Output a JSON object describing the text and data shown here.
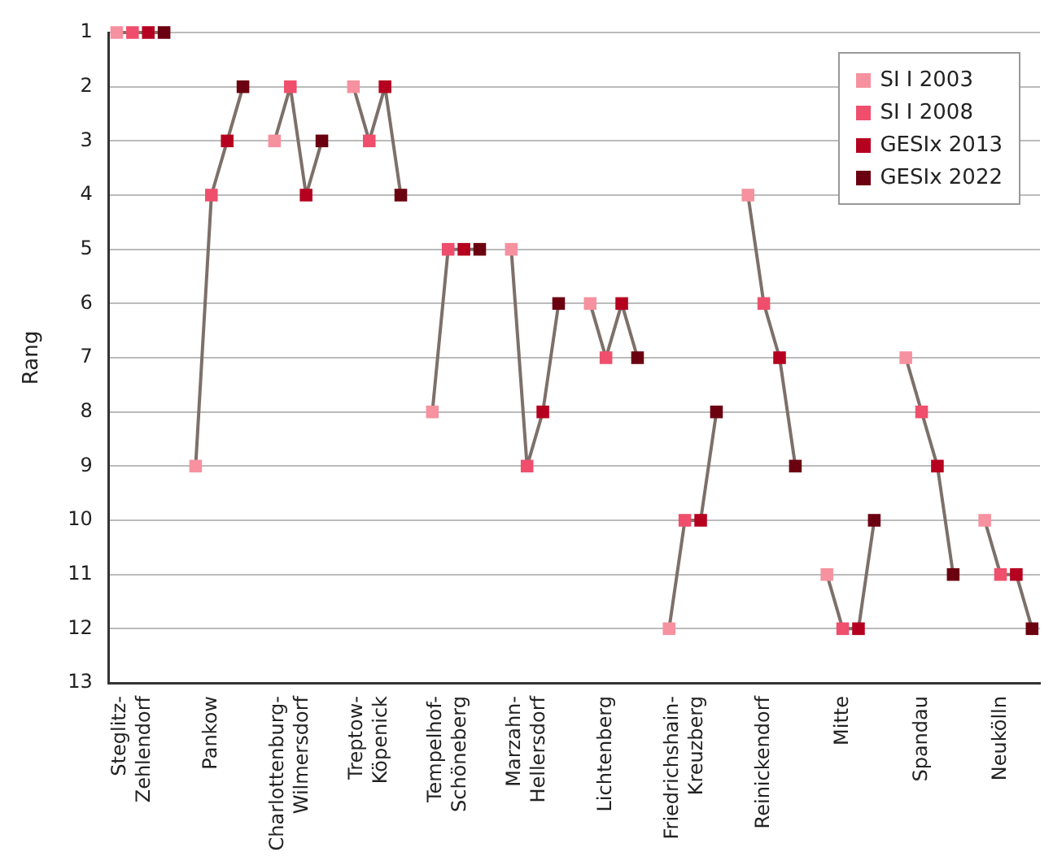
{
  "chart_data": {
    "type": "scatter",
    "ylabel": "Rang",
    "categories": [
      null,
      "Steglitz-Zehlendorf",
      null,
      null,
      null,
      null,
      "Pankow",
      null,
      null,
      null,
      null,
      "Charlottenburg-Wilmersdorf",
      null,
      null,
      null,
      null,
      "Treptow-Köpenick",
      null,
      null,
      null,
      null,
      "Tempelhof-Schöneberg",
      null,
      null,
      null,
      null,
      "Marzahn-Hellersdorf",
      null,
      null,
      null,
      null,
      "Lichtenberg",
      null,
      null,
      null,
      null,
      "Friedrichshain-Kreuzberg",
      null,
      null,
      null,
      null,
      "Reinickendorf",
      null,
      null,
      null,
      null,
      "Mitte",
      null,
      null,
      null,
      null,
      "Spandau",
      null,
      null,
      null,
      null,
      "Neukölln",
      null,
      null
    ],
    "ylim": [
      13,
      1
    ],
    "yticks": [
      1,
      2,
      3,
      4,
      5,
      6,
      7,
      8,
      9,
      10,
      11,
      12,
      13
    ],
    "grid": "y",
    "legend": "top right",
    "marker": "square",
    "series": [
      {
        "type": "line",
        "color": "#7d7069",
        "marker": "none",
        "values": [
          1,
          1,
          1,
          1,
          null,
          9,
          4,
          3,
          2,
          null,
          3,
          2,
          4,
          3,
          null,
          2,
          3,
          2,
          4,
          null,
          8,
          5,
          5,
          5,
          null,
          5,
          9,
          8,
          6,
          null,
          6,
          7,
          6,
          7,
          null,
          12,
          10,
          10,
          8,
          null,
          4,
          6,
          7,
          9,
          null,
          11,
          12,
          12,
          10,
          null,
          7,
          8,
          9,
          11,
          null,
          10,
          11,
          11,
          12
        ]
      },
      {
        "name": "SI I 2003",
        "color": "#f6919f",
        "values": [
          1,
          null,
          null,
          null,
          null,
          9,
          null,
          null,
          null,
          null,
          3,
          null,
          null,
          null,
          null,
          2,
          null,
          null,
          null,
          null,
          8,
          null,
          null,
          null,
          null,
          5,
          null,
          null,
          null,
          null,
          6,
          null,
          null,
          null,
          null,
          12,
          null,
          null,
          null,
          null,
          4,
          null,
          null,
          null,
          null,
          11,
          null,
          null,
          null,
          null,
          7,
          null,
          null,
          null,
          null,
          10,
          null,
          null,
          null
        ]
      },
      {
        "name": "SI I 2008",
        "color": "#ef4f6c",
        "values": [
          null,
          1,
          null,
          null,
          null,
          null,
          4,
          null,
          null,
          null,
          null,
          2,
          null,
          null,
          null,
          null,
          3,
          null,
          null,
          null,
          null,
          5,
          null,
          null,
          null,
          null,
          9,
          null,
          null,
          null,
          null,
          7,
          null,
          null,
          null,
          null,
          10,
          null,
          null,
          null,
          null,
          6,
          null,
          null,
          null,
          null,
          12,
          null,
          null,
          null,
          null,
          8,
          null,
          null,
          null,
          null,
          11,
          null,
          null
        ]
      },
      {
        "name": "GESIx 2013",
        "color": "#b5001f",
        "values": [
          null,
          null,
          1,
          null,
          null,
          null,
          null,
          3,
          null,
          null,
          null,
          null,
          4,
          null,
          null,
          null,
          null,
          2,
          null,
          null,
          null,
          null,
          5,
          null,
          null,
          null,
          null,
          8,
          null,
          null,
          null,
          null,
          6,
          null,
          null,
          null,
          null,
          10,
          null,
          null,
          null,
          null,
          7,
          null,
          null,
          null,
          null,
          12,
          null,
          null,
          null,
          null,
          9,
          null,
          null,
          null,
          null,
          11,
          null
        ]
      },
      {
        "name": "GESIx 2022",
        "color": "#6b0010",
        "values": [
          null,
          null,
          null,
          1,
          null,
          null,
          null,
          null,
          2,
          null,
          null,
          null,
          null,
          3,
          null,
          null,
          null,
          null,
          4,
          null,
          null,
          null,
          null,
          5,
          null,
          null,
          null,
          null,
          6,
          null,
          null,
          null,
          null,
          7,
          null,
          null,
          null,
          null,
          8,
          null,
          null,
          null,
          null,
          9,
          null,
          null,
          null,
          null,
          10,
          null,
          null,
          null,
          null,
          11,
          null,
          null,
          null,
          null,
          12
        ]
      }
    ]
  }
}
